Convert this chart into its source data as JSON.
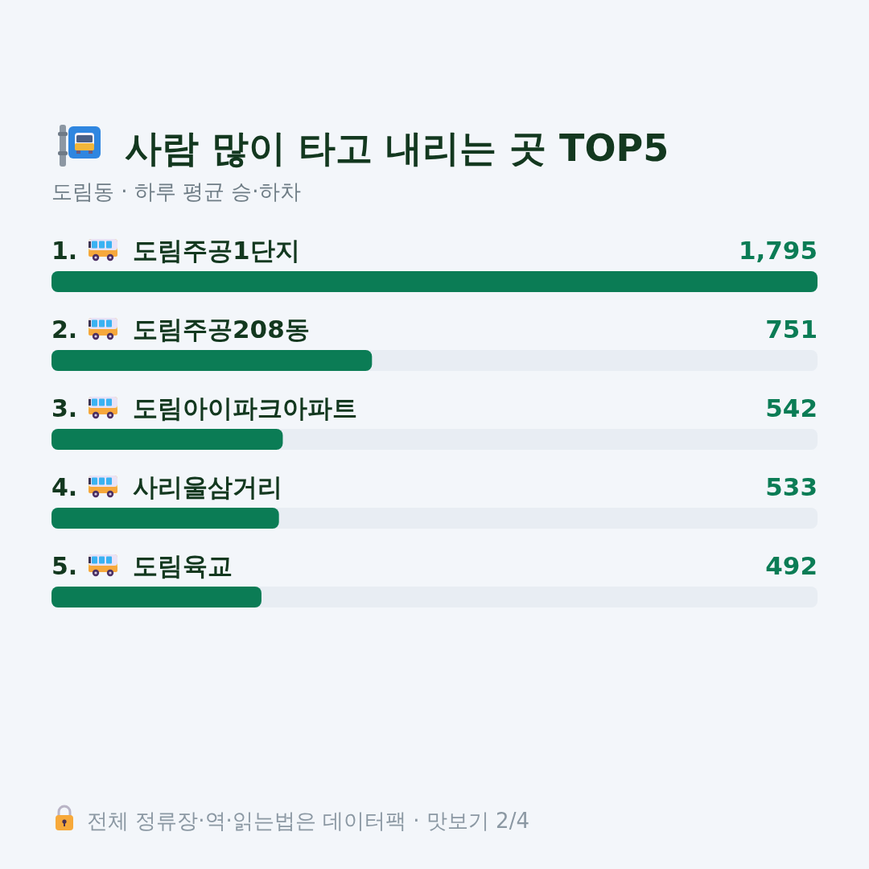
{
  "chart_data": {
    "type": "bar",
    "orientation": "horizontal",
    "title": "사람 많이 타고 내리는 곳 TOP5",
    "subtitle": "도림동 · 하루 평균 승·하차",
    "categories": [
      "1. 도림주공1단지",
      "2. 도림주공208동",
      "3. 도림아이파크아파트",
      "4. 사리울삼거리",
      "5. 도림육교"
    ],
    "values": [
      1795,
      751,
      542,
      533,
      492
    ],
    "value_labels": [
      "1,795",
      "751",
      "542",
      "533",
      "492"
    ],
    "color": "#0b7c55",
    "xlim": [
      0,
      1795
    ],
    "annotations": [
      "전체 정류장·역·읽는법은 데이터팩 · 맛보기 2/4"
    ]
  }
}
